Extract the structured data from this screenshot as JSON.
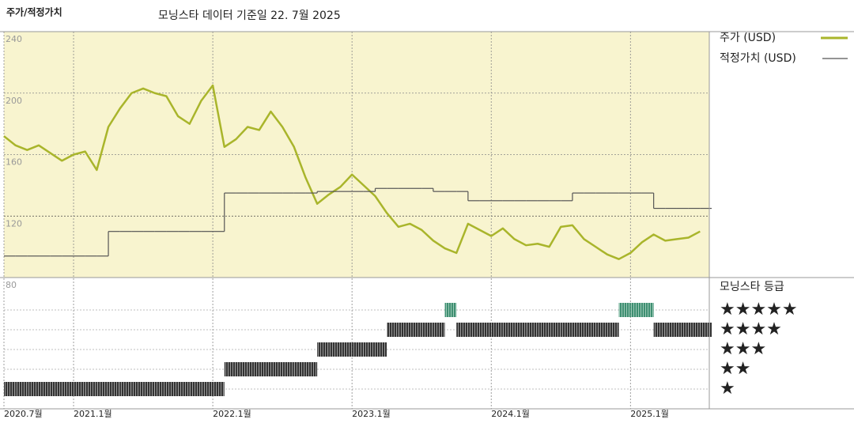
{
  "chart_data": {
    "type": "line",
    "title": "주가/적정가치",
    "subtitle": "모닝스타 데이터 기준일 22. 7월 2025",
    "x": [
      "2020-07",
      "2020-08",
      "2020-09",
      "2020-10",
      "2020-11",
      "2020-12",
      "2021-01",
      "2021-02",
      "2021-03",
      "2021-04",
      "2021-05",
      "2021-06",
      "2021-07",
      "2021-08",
      "2021-09",
      "2021-10",
      "2021-11",
      "2021-12",
      "2022-01",
      "2022-02",
      "2022-03",
      "2022-04",
      "2022-05",
      "2022-06",
      "2022-07",
      "2022-08",
      "2022-09",
      "2022-10",
      "2022-11",
      "2022-12",
      "2023-01",
      "2023-02",
      "2023-03",
      "2023-04",
      "2023-05",
      "2023-06",
      "2023-07",
      "2023-08",
      "2023-09",
      "2023-10",
      "2023-11",
      "2023-12",
      "2024-01",
      "2024-02",
      "2024-03",
      "2024-04",
      "2024-05",
      "2024-06",
      "2024-07",
      "2024-08",
      "2024-09",
      "2024-10",
      "2024-11",
      "2024-12",
      "2025-01",
      "2025-02",
      "2025-03",
      "2025-04",
      "2025-05",
      "2025-06",
      "2025-07"
    ],
    "xlim": [
      "2020-07",
      "2025-08"
    ],
    "xticks": [
      {
        "value": "2020-07",
        "label": "2020.7월"
      },
      {
        "value": "2021-01",
        "label": "2021.1월"
      },
      {
        "value": "2022-01",
        "label": "2022.1월"
      },
      {
        "value": "2023-01",
        "label": "2023.1월"
      },
      {
        "value": "2024-01",
        "label": "2024.1월"
      },
      {
        "value": "2025-01",
        "label": "2025.1월"
      }
    ],
    "ylim": [
      80,
      240
    ],
    "yticks": [
      80,
      120,
      160,
      200,
      240
    ],
    "grid": true,
    "series": [
      {
        "name": "주가 (USD)",
        "color": "#a9b52b",
        "values": [
          172,
          166,
          163,
          166,
          161,
          156,
          160,
          162,
          150,
          178,
          190,
          200,
          203,
          200,
          198,
          185,
          180,
          195,
          205,
          165,
          170,
          178,
          176,
          188,
          178,
          165,
          145,
          128,
          134,
          139,
          147,
          140,
          133,
          122,
          113,
          115,
          111,
          104,
          99,
          96,
          115,
          111,
          107,
          112,
          105,
          101,
          102,
          100,
          113,
          114,
          105,
          100,
          95,
          92,
          96,
          103,
          108,
          104,
          105,
          106,
          110
        ]
      },
      {
        "name": "적정가치 (USD)",
        "color": "#555555",
        "values": [
          94,
          94,
          94,
          94,
          94,
          94,
          94,
          94,
          94,
          110,
          110,
          110,
          110,
          110,
          110,
          110,
          110,
          110,
          110,
          135,
          135,
          135,
          135,
          135,
          135,
          135,
          135,
          136,
          136,
          136,
          136,
          136,
          138,
          138,
          138,
          138,
          138,
          136,
          136,
          136,
          130,
          130,
          130,
          130,
          130,
          130,
          130,
          130,
          130,
          135,
          135,
          135,
          135,
          135,
          135,
          135,
          125,
          125,
          125,
          125,
          125
        ]
      }
    ],
    "rating": {
      "title": "모닝스타 등급",
      "labels": [
        "★",
        "★★",
        "★★★",
        "★★★★",
        "★★★★★"
      ],
      "colors": [
        "#333333",
        "#333333",
        "#333333",
        "#333333",
        "#3f8f72"
      ],
      "values": [
        1,
        1,
        1,
        1,
        1,
        1,
        1,
        1,
        1,
        1,
        1,
        1,
        1,
        1,
        1,
        1,
        1,
        1,
        1,
        2,
        2,
        2,
        2,
        2,
        2,
        2,
        2,
        3,
        3,
        3,
        3,
        3,
        3,
        4,
        4,
        4,
        4,
        4,
        5,
        4,
        4,
        4,
        4,
        4,
        4,
        4,
        4,
        4,
        4,
        4,
        4,
        4,
        4,
        5,
        5,
        5,
        4,
        4,
        4,
        4,
        4
      ]
    }
  }
}
